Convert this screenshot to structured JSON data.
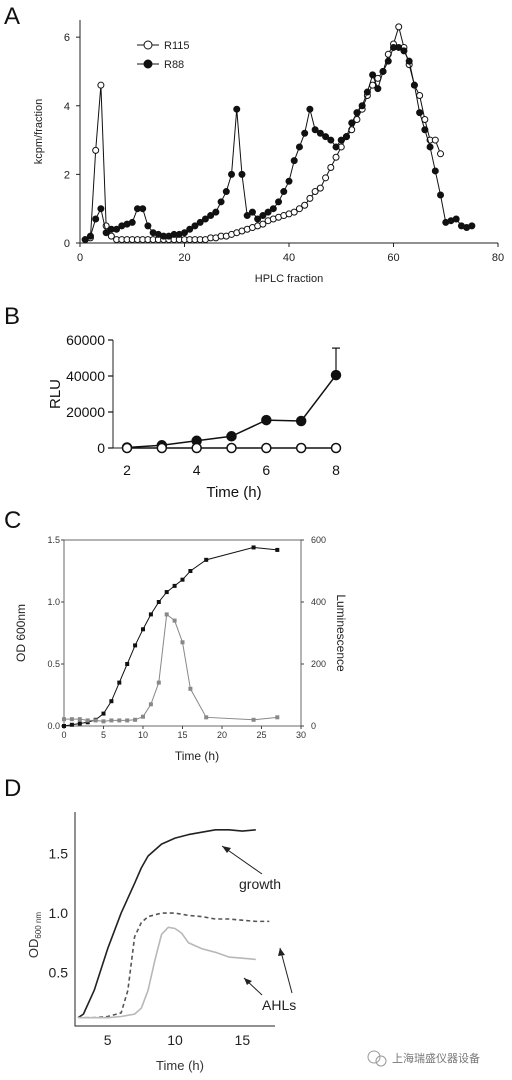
{
  "panel_labels": {
    "a": "A",
    "b": "B",
    "c": "C",
    "d": "D"
  },
  "watermark": "上海瑞盛仪器设备",
  "colors": {
    "dark": "#111111",
    "gray": "#888888",
    "lightgray": "#b8b8b8"
  },
  "chart_data": [
    {
      "id": "A",
      "type": "line",
      "xlabel": "HPLC fraction",
      "ylabel": "kcpm/fraction",
      "xlim": [
        0,
        80
      ],
      "ylim": [
        0,
        6.5
      ],
      "xticks": [
        0,
        20,
        40,
        60,
        80
      ],
      "yticks": [
        0,
        2,
        4,
        6
      ],
      "legend": "top-left",
      "series": [
        {
          "name": "R115",
          "marker": "open-circle",
          "x": [
            1,
            2,
            3,
            4,
            5,
            6,
            7,
            8,
            9,
            10,
            11,
            12,
            13,
            14,
            15,
            16,
            17,
            18,
            19,
            20,
            21,
            22,
            23,
            24,
            25,
            26,
            27,
            28,
            29,
            30,
            31,
            32,
            33,
            34,
            35,
            36,
            37,
            38,
            39,
            40,
            41,
            42,
            43,
            44,
            45,
            46,
            47,
            48,
            49,
            50,
            51,
            52,
            53,
            54,
            55,
            56,
            57,
            58,
            59,
            60,
            61,
            62,
            63,
            64,
            65,
            66,
            67,
            68,
            69
          ],
          "y": [
            0.1,
            0.15,
            2.7,
            4.6,
            0.5,
            0.2,
            0.1,
            0.1,
            0.1,
            0.1,
            0.1,
            0.1,
            0.1,
            0.1,
            0.1,
            0.1,
            0.1,
            0.1,
            0.1,
            0.1,
            0.1,
            0.1,
            0.1,
            0.1,
            0.15,
            0.15,
            0.2,
            0.2,
            0.25,
            0.3,
            0.35,
            0.4,
            0.45,
            0.5,
            0.55,
            0.65,
            0.7,
            0.75,
            0.8,
            0.85,
            0.9,
            1.0,
            1.1,
            1.3,
            1.5,
            1.6,
            1.9,
            2.2,
            2.5,
            2.8,
            3.1,
            3.3,
            3.6,
            3.9,
            4.3,
            4.6,
            4.8,
            5.0,
            5.5,
            5.8,
            6.3,
            5.7,
            5.2,
            4.6,
            4.3,
            3.6,
            3.0,
            3.0,
            2.6
          ]
        },
        {
          "name": "R88",
          "marker": "filled-circle",
          "x": [
            1,
            2,
            3,
            4,
            5,
            6,
            7,
            8,
            9,
            10,
            11,
            12,
            13,
            14,
            15,
            16,
            17,
            18,
            19,
            20,
            21,
            22,
            23,
            24,
            25,
            26,
            27,
            28,
            29,
            30,
            31,
            32,
            33,
            34,
            35,
            36,
            37,
            38,
            39,
            40,
            41,
            42,
            43,
            44,
            45,
            46,
            47,
            48,
            49,
            50,
            51,
            52,
            53,
            54,
            55,
            56,
            57,
            58,
            59,
            60,
            61,
            62,
            63,
            64,
            65,
            66,
            67,
            68,
            69,
            70,
            71,
            72,
            73,
            74,
            75
          ],
          "y": [
            0.1,
            0.2,
            0.7,
            1.0,
            0.3,
            0.4,
            0.4,
            0.5,
            0.55,
            0.6,
            1.0,
            1.0,
            0.5,
            0.3,
            0.25,
            0.2,
            0.2,
            0.25,
            0.25,
            0.3,
            0.4,
            0.5,
            0.6,
            0.7,
            0.8,
            0.9,
            1.2,
            1.5,
            2.0,
            3.9,
            2.0,
            0.8,
            0.9,
            0.7,
            0.8,
            0.9,
            1.0,
            1.2,
            1.5,
            1.8,
            2.4,
            2.8,
            3.2,
            3.9,
            3.3,
            3.2,
            3.1,
            3.0,
            2.8,
            3.0,
            3.1,
            3.5,
            3.8,
            4.0,
            4.4,
            4.9,
            4.5,
            5.0,
            5.3,
            5.7,
            5.7,
            5.6,
            5.3,
            4.6,
            3.8,
            3.3,
            2.8,
            2.1,
            1.4,
            0.6,
            0.65,
            0.7,
            0.5,
            0.45,
            0.5
          ]
        }
      ]
    },
    {
      "id": "B",
      "type": "line",
      "xlabel": "Time (h)",
      "ylabel": "RLU",
      "xlim": [
        2,
        8
      ],
      "ylim": [
        0,
        60000
      ],
      "xticks": [
        2,
        4,
        6,
        8
      ],
      "yticks": [
        0,
        20000,
        40000,
        60000
      ],
      "series": [
        {
          "marker": "filled-circle",
          "x": [
            2,
            3,
            4,
            5,
            6,
            7,
            8
          ],
          "y": [
            300,
            1500,
            4000,
            6500,
            15500,
            15000,
            40500
          ],
          "err_top": [
            0,
            0,
            0,
            0,
            0,
            0,
            55500
          ]
        },
        {
          "marker": "open-circle",
          "x": [
            2,
            3,
            4,
            5,
            6,
            7,
            8
          ],
          "y": [
            0,
            0,
            0,
            0,
            0,
            0,
            0
          ]
        }
      ]
    },
    {
      "id": "C",
      "type": "line",
      "xlabel": "Time (h)",
      "ylabel": "OD 600nm",
      "y2label": "Luminescence",
      "xlim": [
        0,
        30
      ],
      "ylim": [
        0,
        1.5
      ],
      "y2lim": [
        0,
        600
      ],
      "xticks": [
        0,
        5,
        10,
        15,
        20,
        25,
        30
      ],
      "yticks": [
        0.0,
        0.5,
        1.0,
        1.5
      ],
      "y2ticks": [
        0,
        200,
        400,
        600
      ],
      "series": [
        {
          "axis": "left",
          "color": "#111111",
          "marker": "square",
          "x": [
            0,
            1,
            2,
            3,
            4,
            5,
            6,
            7,
            8,
            9,
            10,
            11,
            12,
            13,
            14,
            15,
            16,
            18,
            24,
            27
          ],
          "y": [
            0,
            0.01,
            0.02,
            0.03,
            0.05,
            0.1,
            0.2,
            0.35,
            0.5,
            0.65,
            0.78,
            0.9,
            1.0,
            1.08,
            1.13,
            1.18,
            1.25,
            1.34,
            1.44,
            1.42
          ]
        },
        {
          "axis": "right",
          "color": "#888888",
          "marker": "square",
          "x": [
            0,
            1,
            2,
            3,
            4,
            5,
            6,
            7,
            8,
            9,
            10,
            11,
            12,
            13,
            14,
            15,
            16,
            18,
            24,
            27
          ],
          "y": [
            22,
            22,
            22,
            18,
            18,
            15,
            18,
            18,
            18,
            20,
            30,
            70,
            140,
            360,
            340,
            270,
            120,
            28,
            20,
            28
          ]
        }
      ]
    },
    {
      "id": "D",
      "type": "line",
      "xlabel": "Time (h)",
      "ylabel": "OD",
      "ylabel_sub": "600 nm",
      "xlim": [
        2.5,
        17.5
      ],
      "ylim": [
        0.05,
        1.85
      ],
      "xticks": [
        5,
        10,
        15
      ],
      "yticks": [
        0.5,
        1.0,
        1.5
      ],
      "annotations": [
        "growth",
        "AHLs"
      ],
      "series": [
        {
          "style": "solid",
          "color": "#222222",
          "x": [
            2.8,
            3.2,
            4,
            5,
            6,
            7,
            7.5,
            8,
            9,
            10,
            11,
            12,
            13,
            14,
            15,
            16
          ],
          "y": [
            0.12,
            0.15,
            0.35,
            0.7,
            1.0,
            1.25,
            1.38,
            1.48,
            1.58,
            1.63,
            1.66,
            1.68,
            1.7,
            1.7,
            1.69,
            1.7
          ]
        },
        {
          "style": "dashed",
          "color": "#555555",
          "x": [
            2.8,
            4,
            5,
            6,
            6.5,
            7,
            7.5,
            8,
            9,
            10,
            11,
            12,
            13,
            14,
            15,
            16,
            17
          ],
          "y": [
            0.12,
            0.12,
            0.13,
            0.16,
            0.35,
            0.8,
            0.92,
            0.97,
            1.0,
            1.0,
            0.98,
            0.97,
            0.95,
            0.95,
            0.94,
            0.93,
            0.93
          ]
        },
        {
          "style": "solid",
          "color": "#b8b8b8",
          "x": [
            2.8,
            4,
            5,
            6,
            7,
            7.5,
            8,
            8.5,
            9,
            9.5,
            10,
            10.5,
            11,
            12,
            13,
            14,
            15,
            16
          ],
          "y": [
            0.12,
            0.12,
            0.12,
            0.13,
            0.15,
            0.2,
            0.35,
            0.6,
            0.82,
            0.88,
            0.87,
            0.83,
            0.75,
            0.7,
            0.67,
            0.63,
            0.62,
            0.61
          ]
        }
      ]
    }
  ]
}
